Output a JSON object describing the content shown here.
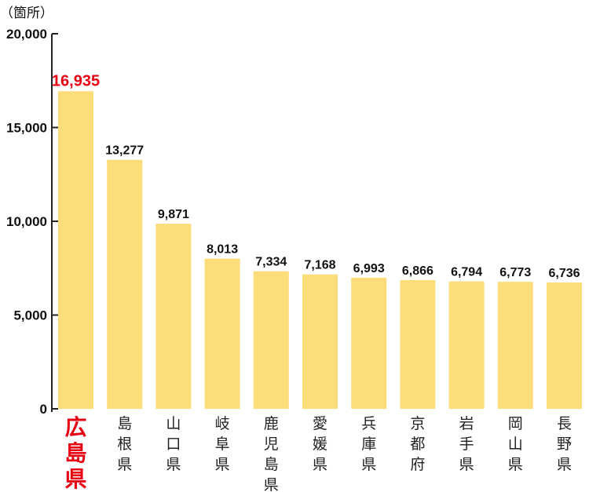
{
  "chart_data": {
    "type": "bar",
    "unit_label": "（箇所）",
    "categories": [
      "広島県",
      "島根県",
      "山口県",
      "岐阜県",
      "鹿児島県",
      "愛媛県",
      "兵庫県",
      "京都府",
      "岩手県",
      "岡山県",
      "長野県"
    ],
    "values": [
      16935,
      13277,
      9871,
      8013,
      7334,
      7168,
      6993,
      6866,
      6794,
      6773,
      6736
    ],
    "value_labels": [
      "16,935",
      "13,277",
      "9,871",
      "8,013",
      "7,334",
      "7,168",
      "6,993",
      "6,866",
      "6,794",
      "6,773",
      "6,736"
    ],
    "ylim": [
      0,
      20000
    ],
    "yticks": [
      0,
      5000,
      10000,
      15000,
      20000
    ],
    "ytick_labels": [
      "0",
      "5,000",
      "10,000",
      "15,000",
      "20,000"
    ],
    "highlight_index": 0,
    "grid": false,
    "colors": {
      "bar": "#fddc7a",
      "highlight_text": "#e60012",
      "text": "#111111",
      "axis": "#222222"
    }
  }
}
